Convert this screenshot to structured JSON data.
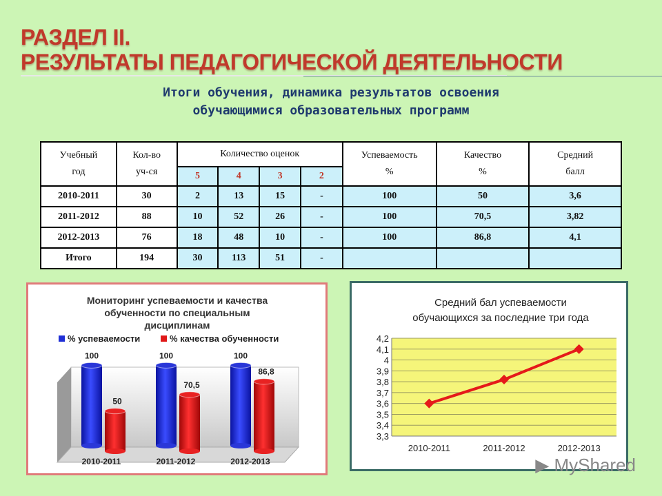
{
  "header": {
    "title_line1": "РАЗДЕЛ II.",
    "title_line2": "РЕЗУЛЬТАТЫ ПЕДАГОГИЧЕСКОЙ ДЕЯТЕЛЬНОСТИ",
    "subtitle_line1": "Итоги обучения, динамика результатов освоения",
    "subtitle_line2": "обучающимися образовательных программ"
  },
  "table": {
    "headers": {
      "year": [
        "Учебный",
        "год"
      ],
      "count": [
        "Кол-во",
        "уч-ся"
      ],
      "grades": "Количество оценок",
      "grade_labels": [
        "5",
        "4",
        "3",
        "2"
      ],
      "success": [
        "Успеваемость",
        "%"
      ],
      "quality": [
        "Качество",
        "%"
      ],
      "avg": [
        "Средний",
        "балл"
      ]
    },
    "rows": [
      [
        "2010-2011",
        "30",
        "2",
        "13",
        "15",
        "-",
        "100",
        "50",
        "3,6"
      ],
      [
        "2011-2012",
        "88",
        "10",
        "52",
        "26",
        "-",
        "100",
        "70,5",
        "3,82"
      ],
      [
        "2012-2013",
        "76",
        "18",
        "48",
        "10",
        "-",
        "100",
        "86,8",
        "4,1"
      ],
      [
        "Итого",
        "194",
        "30",
        "113",
        "51",
        "-",
        "",
        "",
        ""
      ]
    ]
  },
  "chart_data": [
    {
      "type": "bar",
      "title": [
        "Мониторинг успеваемости и качества",
        "обученности по специальным",
        "дисциплинам"
      ],
      "categories": [
        "2010-2011",
        "2011-2012",
        "2012-2013"
      ],
      "series": [
        {
          "name": "% успеваемости",
          "values": [
            100,
            100,
            100
          ],
          "value_labels": [
            "100",
            "100",
            "100"
          ],
          "color": "#1f2fd6"
        },
        {
          "name": "% качества обученности",
          "values": [
            50,
            70.5,
            86.8
          ],
          "value_labels": [
            "50",
            "70,5",
            "86,8"
          ],
          "color": "#e01818"
        }
      ],
      "legend": "top",
      "ylim": [
        0,
        120
      ],
      "grid": false,
      "three_d": true
    },
    {
      "type": "line",
      "title": [
        "Средний бал успеваемости",
        "обучающихся за последние три года"
      ],
      "categories": [
        "2010-2011",
        "2011-2012",
        "2012-2013"
      ],
      "values": [
        3.6,
        3.82,
        4.1
      ],
      "yticks": [
        "3,3",
        "3,4",
        "3,5",
        "3,6",
        "3,7",
        "3,8",
        "3,9",
        "4",
        "4,1",
        "4,2"
      ],
      "ylim": [
        3.3,
        4.2
      ],
      "grid": true,
      "colors": {
        "line": "#e51a1a",
        "plot_bg": "#f5f57a",
        "grid": "#9a9a60"
      }
    }
  ],
  "watermark": "MyShared"
}
